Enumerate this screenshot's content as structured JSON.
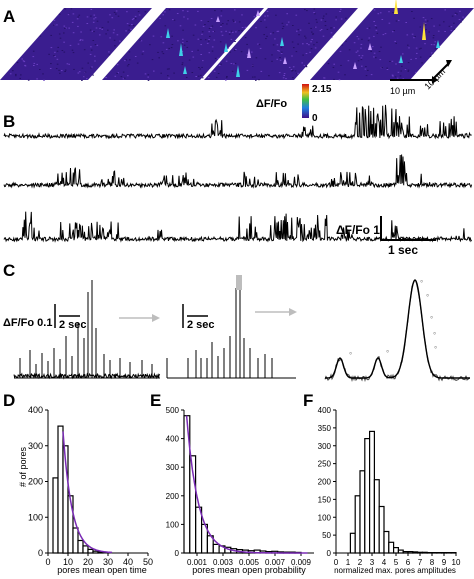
{
  "panels": {
    "A": "A",
    "B": "B",
    "C": "C",
    "D": "D",
    "E": "E",
    "F": "F"
  },
  "colors": {
    "surface": "#3a1d8f",
    "peak_hot": "#ffe23a",
    "peak_mid": "#3fd0e8",
    "trace": "#000000",
    "fit": "#7a2bb5",
    "arrow": "#bdbdbd"
  },
  "panelA": {
    "scale_x": "10 µm",
    "scale_y": "10 µm",
    "colorbar_max": "2.15",
    "colorbar_min": "0",
    "colorbar_label": "ΔF/Fo"
  },
  "panelB": {
    "scale_amp": "ΔF/Fo 1",
    "scale_time": "1 sec"
  },
  "panelC": {
    "scale_amp": "ΔF/Fo 0.1",
    "scale_time1": "2 sec",
    "scale_time2": "2 sec"
  },
  "chart_data": [
    {
      "type": "bar",
      "panel": "D",
      "xlabel": "pores mean open time",
      "ylabel": "# of pores",
      "xlim": [
        0,
        50
      ],
      "ylim": [
        0,
        400
      ],
      "xticks": [
        "0",
        "10",
        "20",
        "30",
        "40",
        "50"
      ],
      "yticks": [
        "0",
        "100",
        "200",
        "300",
        "400"
      ],
      "bin_width": 2.5,
      "x": [
        3.75,
        6.25,
        8.75,
        11.25,
        13.75,
        16.25,
        18.75,
        21.25,
        23.75,
        26.25
      ],
      "values": [
        210,
        355,
        300,
        160,
        70,
        35,
        20,
        10,
        5,
        3
      ],
      "fit_peak_x": 7.5,
      "fit_peak_y": 340,
      "fit_decay": 4.5
    },
    {
      "type": "bar",
      "panel": "E",
      "xlabel": "pores mean open probability",
      "ylabel": "",
      "xlim": [
        0,
        0.01
      ],
      "ylim": [
        0,
        500
      ],
      "xticks": [
        "0.001",
        "0.003",
        "0.005",
        "0.007",
        "0.009"
      ],
      "yticks": [
        "0",
        "100",
        "200",
        "300",
        "400",
        "500"
      ],
      "bin_width": 0.00045,
      "x": [
        0.000225,
        0.000675,
        0.001125,
        0.001575,
        0.002025,
        0.002475,
        0.002925,
        0.003375,
        0.003825,
        0.004275,
        0.004725,
        0.005175,
        0.005625,
        0.006075,
        0.006525,
        0.006975,
        0.007425,
        0.007875,
        0.008325,
        0.008775
      ],
      "values": [
        480,
        340,
        160,
        100,
        60,
        30,
        25,
        20,
        15,
        12,
        10,
        8,
        10,
        7,
        5,
        6,
        4,
        3,
        3,
        2
      ],
      "fit_start": 480,
      "fit_decay": 0.0009
    },
    {
      "type": "bar",
      "panel": "F",
      "xlabel": "normalized max. pores amplitudes",
      "ylabel": "",
      "xlim": [
        0,
        10
      ],
      "ylim": [
        0,
        400
      ],
      "xticks": [
        "0",
        "1",
        "2",
        "3",
        "4",
        "5",
        "6",
        "7",
        "8",
        "9",
        "10"
      ],
      "yticks": [
        "0",
        "50",
        "100",
        "150",
        "200",
        "250",
        "300",
        "350",
        "400"
      ],
      "bin_width": 0.4,
      "x": [
        1.0,
        1.4,
        1.8,
        2.2,
        2.6,
        3.0,
        3.4,
        3.8,
        4.2,
        4.6,
        5.0,
        5.4,
        5.8,
        6.2,
        6.6,
        7.0,
        7.4,
        7.8,
        8.2,
        8.6,
        9.0,
        9.4,
        9.8
      ],
      "values": [
        0,
        55,
        160,
        230,
        320,
        340,
        205,
        130,
        60,
        30,
        15,
        8,
        4,
        4,
        3,
        2,
        2,
        1,
        1,
        1,
        1,
        1,
        1
      ]
    }
  ]
}
